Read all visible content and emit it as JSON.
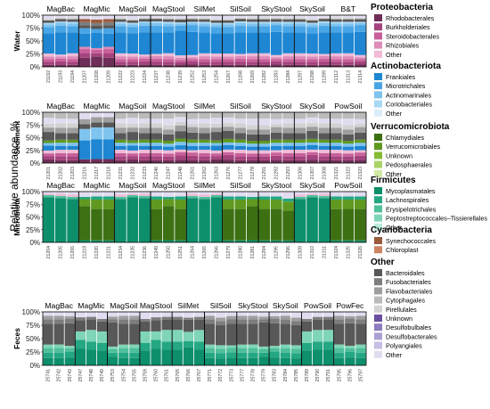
{
  "colors": {
    "Proteobacteria": [
      "#6e2e57",
      "#a4437d",
      "#c85f9a",
      "#dd8bb8",
      "#efbbd6"
    ],
    "Actinobacteriota": [
      "#1e86d2",
      "#49a6e6",
      "#7fc3ef",
      "#aad7f4",
      "#dcedfa"
    ],
    "Verrucomicrobiota": [
      "#3d7013",
      "#5f9920",
      "#84bc35",
      "#abd467",
      "#d0e8a4"
    ],
    "Firmicutes": [
      "#0e8f6c",
      "#24a783",
      "#4fbf9c",
      "#7fd5b7",
      "#b9ebda"
    ],
    "Cyanobacteria": [
      "#9a5a3c",
      "#cc8463"
    ],
    "Other": [
      "#585858",
      "#7d7d7d",
      "#9e9e9e",
      "#bbbbbb",
      "#d2d2d2",
      "#6a4f9e",
      "#8d7bbd",
      "#ae9fd3",
      "#c8bde2",
      "#e2dcf0"
    ]
  },
  "legend": [
    {
      "phylum": "Proteobacteria",
      "items": [
        "Rhodobacterales",
        "Burkholderiales",
        "Steroidobacterales",
        "Rhizobiales",
        "Other"
      ]
    },
    {
      "phylum": "Actinobacteriota",
      "items": [
        "Frankiales",
        "Microtrichales",
        "Actinomarinales",
        "Coriobacteriales",
        "Other"
      ]
    },
    {
      "phylum": "Verrucomicrobiota",
      "items": [
        "Chlamydiales",
        "Verrucomicrobiales",
        "Unknown",
        "Pedosphaerales",
        "Other"
      ]
    },
    {
      "phylum": "Firmicutes",
      "items": [
        "Mycoplasmatales",
        "Lachnospirales",
        "Erysipelotrichales",
        "Peptostreptococcales–Tissierellales",
        "Other"
      ]
    },
    {
      "phylum": "Cyanobacteria",
      "items": [
        "Synechococcales",
        "Chloroplast"
      ]
    },
    {
      "phylum": "Other",
      "items": [
        "Bacteroidales",
        "Fusobacteriales",
        "Flavobacteriales",
        "Cytophagales",
        "Pirellulales",
        "Unknown",
        "Desulfobulbales",
        "Desulfobacterales",
        "Polyangiales",
        "Other"
      ]
    }
  ],
  "chart_data": {
    "type": "bar",
    "stacked": true,
    "ylabel": "Relative abundance, %",
    "yticks": [
      "0%",
      "25%",
      "50%",
      "75%",
      "100%"
    ],
    "ylim": [
      0,
      100
    ],
    "panels": [
      {
        "title": "Water",
        "groups": [
          "MagBac",
          "MagMic",
          "MagSoil",
          "MagStool",
          "SilMet",
          "SilSoil",
          "SkyStool",
          "SkySoil",
          "B&T"
        ],
        "samples": [
          [
            "21192",
            "21193",
            "21194"
          ],
          [
            "21207",
            "21208",
            "21209"
          ],
          [
            "21222",
            "21223",
            "21224"
          ],
          [
            "21237",
            "21238",
            "21239"
          ],
          [
            "21252",
            "21253",
            "21254"
          ],
          [
            "21267",
            "21268",
            "21269"
          ],
          [
            "21282",
            "21283",
            "21284"
          ],
          [
            "21297",
            "21298",
            "21299"
          ],
          [
            "21312",
            "21313",
            "21314"
          ]
        ],
        "profiles": {
          "default": [
            [
              "Proteobacteria",
              0,
              4
            ],
            [
              "Proteobacteria",
              1,
              6
            ],
            [
              "Proteobacteria",
              2,
              5
            ],
            [
              "Proteobacteria",
              3,
              5
            ],
            [
              "Proteobacteria",
              4,
              5
            ],
            [
              "Actinobacteriota",
              0,
              42
            ],
            [
              "Actinobacteriota",
              1,
              12
            ],
            [
              "Actinobacteriota",
              2,
              5
            ],
            [
              "Actinobacteriota",
              3,
              3
            ],
            [
              "Other",
              0,
              5
            ],
            [
              "Other",
              4,
              3
            ],
            [
              "Other",
              9,
              5
            ]
          ],
          "alt": [
            [
              "Proteobacteria",
              0,
              18
            ],
            [
              "Proteobacteria",
              1,
              8
            ],
            [
              "Proteobacteria",
              2,
              8
            ],
            [
              "Proteobacteria",
              3,
              4
            ],
            [
              "Actinobacteriota",
              0,
              26
            ],
            [
              "Actinobacteriota",
              1,
              10
            ],
            [
              "Other",
              0,
              6
            ],
            [
              "Other",
              1,
              6
            ],
            [
              "Cyanobacteria",
              0,
              6
            ],
            [
              "Other",
              9,
              8
            ]
          ]
        },
        "special": {
          "MagMic": "alt"
        }
      },
      {
        "title": "Sediment",
        "groups": [
          "MagBac",
          "MagMic",
          "MagSoil",
          "MagStool",
          "SilMet",
          "SilSoil",
          "SkyStool",
          "SkySoil",
          "PowSoil"
        ],
        "samples": [
          [
            "21201",
            "21202",
            "21203"
          ],
          [
            "21216",
            "21217",
            "21218"
          ],
          [
            "21231",
            "21232",
            "21233"
          ],
          [
            "21246",
            "21247",
            "21248"
          ],
          [
            "21261",
            "21262",
            "21263"
          ],
          [
            "21276",
            "21277",
            "21278"
          ],
          [
            "21291",
            "21292",
            "21293"
          ],
          [
            "21306",
            "21307",
            "21308"
          ],
          [
            "21321",
            "21322",
            "21323"
          ]
        ],
        "profiles": {
          "default": [
            [
              "Proteobacteria",
              0,
              6
            ],
            [
              "Proteobacteria",
              1,
              8
            ],
            [
              "Proteobacteria",
              2,
              6
            ],
            [
              "Proteobacteria",
              4,
              6
            ],
            [
              "Actinobacteriota",
              0,
              8
            ],
            [
              "Actinobacteriota",
              2,
              6
            ],
            [
              "Verrucomicrobiota",
              1,
              6
            ],
            [
              "Other",
              0,
              14
            ],
            [
              "Other",
              2,
              10
            ],
            [
              "Other",
              4,
              8
            ],
            [
              "Other",
              9,
              10
            ],
            [
              "Other",
              3,
              12
            ]
          ],
          "alt": [
            [
              "Proteobacteria",
              0,
              8
            ],
            [
              "Actinobacteriota",
              0,
              40
            ],
            [
              "Actinobacteriota",
              2,
              22
            ],
            [
              "Other",
              0,
              10
            ],
            [
              "Other",
              2,
              10
            ],
            [
              "Other",
              9,
              10
            ]
          ]
        },
        "special": {
          "MagMic": "alt"
        }
      },
      {
        "title": "Microbiota",
        "groups": [
          "MagBac",
          "MagMic",
          "MagSoil",
          "MagStool",
          "SilMet",
          "SilSoil",
          "SkyStool",
          "SkySoil",
          "PowSoil"
        ],
        "samples": [
          [
            "21204",
            "21205",
            "21206"
          ],
          [
            "21219",
            "21220",
            "21221"
          ],
          [
            "21234",
            "21235",
            "21236"
          ],
          [
            "21249",
            "21250",
            "21251"
          ],
          [
            "21264",
            "21265",
            "21266"
          ],
          [
            "21279",
            "21280",
            "21281"
          ],
          [
            "21294",
            "21295",
            "21296"
          ],
          [
            "21309",
            "21310",
            "21311"
          ],
          [
            "21324",
            "21325",
            "21326"
          ]
        ],
        "profiles": {
          "default": [
            [
              "Firmicutes",
              0,
              4
            ],
            [
              "Verrucomicrobiota",
              0,
              62
            ],
            [
              "Verrucomicrobiota",
              1,
              18
            ],
            [
              "Firmicutes",
              1,
              6
            ],
            [
              "Other",
              9,
              10
            ]
          ],
          "alt": [
            [
              "Firmicutes",
              0,
              88
            ],
            [
              "Firmicutes",
              2,
              4
            ],
            [
              "Proteobacteria",
              4,
              4
            ],
            [
              "Other",
              9,
              4
            ]
          ]
        },
        "special": {
          "MagBac": "alt",
          "MagSoil": "alt",
          "SilMet": "alt",
          "SkySoil": "alt"
        }
      },
      {
        "title": "Feces",
        "groups": [
          "MagBac",
          "MagMic",
          "MagSoil",
          "MagStool",
          "SilMet",
          "SilSoil",
          "SkyStool",
          "SkySoil",
          "PowSoil",
          "PowFec"
        ],
        "samples": [
          [
            "25741",
            "25742",
            "25743"
          ],
          [
            "25747",
            "25748",
            "25749"
          ],
          [
            "25753",
            "25754",
            "25755"
          ],
          [
            "25759",
            "25760",
            "25761"
          ],
          [
            "25765",
            "25766",
            "25767"
          ],
          [
            "25771",
            "25772",
            "25773"
          ],
          [
            "25777",
            "25778",
            "25779"
          ],
          [
            "25783",
            "25784",
            "25785"
          ],
          [
            "25789",
            "25790",
            "25791"
          ],
          [
            "25795",
            "25796",
            "25797"
          ]
        ],
        "profiles": {
          "default": [
            [
              "Firmicutes",
              0,
              14
            ],
            [
              "Firmicutes",
              1,
              10
            ],
            [
              "Firmicutes",
              2,
              8
            ],
            [
              "Firmicutes",
              3,
              6
            ],
            [
              "Other",
              0,
              40
            ],
            [
              "Other",
              1,
              8
            ],
            [
              "Other",
              2,
              6
            ],
            [
              "Other",
              9,
              8
            ]
          ],
          "alt": [
            [
              "Firmicutes",
              0,
              30
            ],
            [
              "Firmicutes",
              1,
              15
            ],
            [
              "Firmicutes",
              3,
              20
            ],
            [
              "Other",
              0,
              20
            ],
            [
              "Other",
              1,
              5
            ],
            [
              "Other",
              9,
              10
            ]
          ]
        },
        "special": {
          "MagMic": "alt",
          "MagStool": "alt",
          "SilMet": "alt",
          "PowSoil": "alt"
        }
      }
    ]
  }
}
